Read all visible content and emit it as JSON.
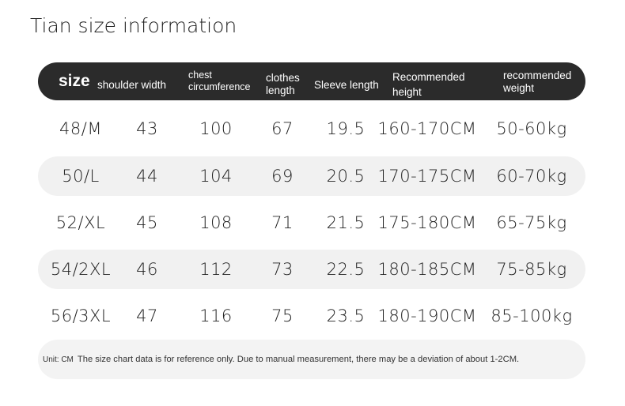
{
  "title": "Tian size information",
  "headers": [
    "size",
    "shoulder width",
    "chest circumference",
    "clothes length",
    "Sleeve length",
    "Recommended height",
    "recommended weight"
  ],
  "header_lines": {
    "chest": [
      "chest",
      "circumference"
    ],
    "clothes": [
      "clothes",
      "length"
    ],
    "height": [
      "Recommended",
      "height"
    ],
    "weight": [
      "recommended",
      "weight"
    ]
  },
  "rows": [
    [
      "48/M",
      "43",
      "100",
      "67",
      "19.5",
      "160-170CM",
      "50-60kg"
    ],
    [
      "50/L",
      "44",
      "104",
      "69",
      "20.5",
      "170-175CM",
      "60-70kg"
    ],
    [
      "52/XL",
      "45",
      "108",
      "71",
      "21.5",
      "175-180CM",
      "65-75kg"
    ],
    [
      "54/2XL",
      "46",
      "112",
      "73",
      "22.5",
      "180-185CM",
      "75-85kg"
    ],
    [
      "56/3XL",
      "47",
      "116",
      "75",
      "23.5",
      "180-190CM",
      "85-100kg"
    ]
  ],
  "footer": {
    "unit": "Unit: CM",
    "note": "The size chart data is for reference only. Due to manual measurement, there may be a deviation of about 1-2CM."
  },
  "colors": {
    "header_bg": "#2b2b2b",
    "shade_row": "#f1f1f1"
  }
}
